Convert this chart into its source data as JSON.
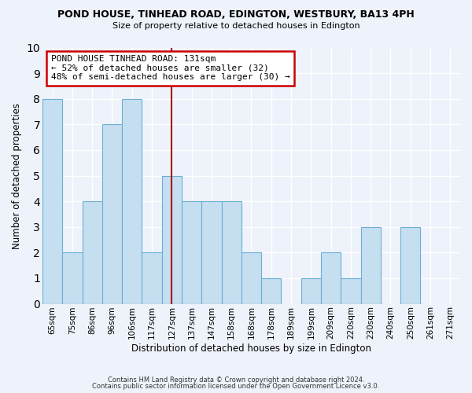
{
  "title_line1": "POND HOUSE, TINHEAD ROAD, EDINGTON, WESTBURY, BA13 4PH",
  "title_line2": "Size of property relative to detached houses in Edington",
  "xlabel": "Distribution of detached houses by size in Edington",
  "ylabel": "Number of detached properties",
  "categories": [
    "65sqm",
    "75sqm",
    "86sqm",
    "96sqm",
    "106sqm",
    "117sqm",
    "127sqm",
    "137sqm",
    "147sqm",
    "158sqm",
    "168sqm",
    "178sqm",
    "189sqm",
    "199sqm",
    "209sqm",
    "220sqm",
    "230sqm",
    "240sqm",
    "250sqm",
    "261sqm",
    "271sqm"
  ],
  "values": [
    8,
    2,
    4,
    7,
    8,
    2,
    5,
    4,
    4,
    4,
    2,
    1,
    0,
    1,
    2,
    1,
    3,
    0,
    3,
    0,
    0
  ],
  "bar_color": "#c5dff0",
  "bar_edge_color": "#6aaed6",
  "highlight_index": 6,
  "highlight_color": "#aa0000",
  "ylim": [
    0,
    10
  ],
  "yticks": [
    0,
    1,
    2,
    3,
    4,
    5,
    6,
    7,
    8,
    9,
    10
  ],
  "annotation_title": "POND HOUSE TINHEAD ROAD: 131sqm",
  "annotation_line2": "← 52% of detached houses are smaller (32)",
  "annotation_line3": "48% of semi-detached houses are larger (30) →",
  "annotation_box_color": "#ffffff",
  "annotation_box_edge": "#cc0000",
  "footer_line1": "Contains HM Land Registry data © Crown copyright and database right 2024.",
  "footer_line2": "Contains public sector information licensed under the Open Government Licence v3.0.",
  "bg_color": "#eef2fa",
  "grid_color": "#ffffff",
  "grid_linewidth": 1.0
}
